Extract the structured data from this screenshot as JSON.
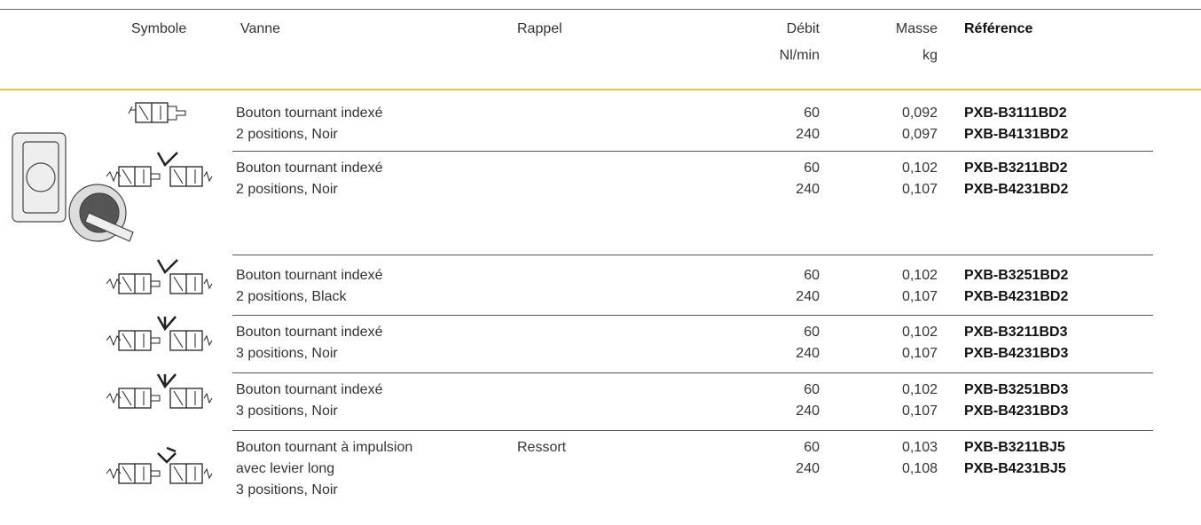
{
  "header": {
    "symbole": "Symbole",
    "vanne": "Vanne",
    "rappel": "Rappel",
    "debit": [
      "Débit",
      "Nl/min"
    ],
    "masse": [
      "Masse",
      "kg"
    ],
    "reference": "Référence"
  },
  "rows": [
    {
      "vanne": [
        "Bouton tournant indexé",
        "2 positions, Noir"
      ],
      "rappel": null,
      "debit": [
        60,
        240
      ],
      "masse": [
        "0,092",
        "0,097"
      ],
      "reference": [
        "PXB-B3111BD2",
        "PXB-B4131BD2"
      ]
    },
    {
      "vanne": [
        "Bouton tournant indexé",
        "2 positions, Noir"
      ],
      "rappel": null,
      "debit": [
        60,
        240
      ],
      "masse": [
        "0,102",
        "0,107"
      ],
      "reference": [
        "PXB-B3211BD2",
        "PXB-B4231BD2"
      ]
    },
    {
      "vanne": [
        "Bouton tournant indexé",
        "2 positions, Black"
      ],
      "rappel": null,
      "debit": [
        60,
        240
      ],
      "masse": [
        "0,102",
        "0,107"
      ],
      "reference": [
        "PXB-B3251BD2",
        "PXB-B4231BD2"
      ]
    },
    {
      "vanne": [
        "Bouton tournant indexé",
        "3 positions, Noir"
      ],
      "rappel": null,
      "debit": [
        60,
        240
      ],
      "masse": [
        "0,102",
        "0,107"
      ],
      "reference": [
        "PXB-B3211BD3",
        "PXB-B4231BD3"
      ]
    },
    {
      "vanne": [
        "Bouton tournant indexé",
        "3 positions, Noir"
      ],
      "rappel": null,
      "debit": [
        60,
        240
      ],
      "masse": [
        "0,102",
        "0,107"
      ],
      "reference": [
        "PXB-B3251BD3",
        "PXB-B4231BD3"
      ]
    },
    {
      "vanne": [
        "Bouton tournant à impulsion",
        "avec levier long",
        "3 positions, Noir"
      ],
      "rappel": "Ressort",
      "debit": [
        60,
        240
      ],
      "masse": [
        "0,103",
        "0,108"
      ],
      "reference": [
        "PXB-B3211BJ5",
        "PXB-B4231BJ5"
      ]
    }
  ]
}
